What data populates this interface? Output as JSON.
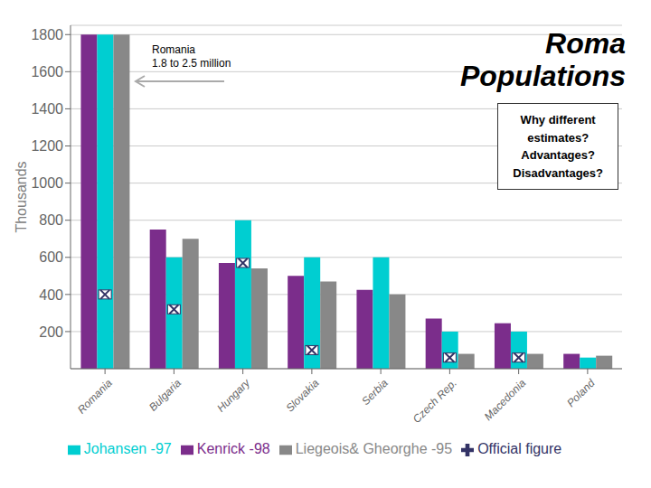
{
  "chart_data": {
    "type": "bar",
    "title": "Roma\nPopulations",
    "subtitle": "Why different\nestimates?\nAdvantages?\nDisadvantages?",
    "ylabel": "Thousands",
    "annotations": [
      {
        "text": "Romania\n1.8 to 2.5 million"
      }
    ],
    "categories": [
      "Romania",
      "Bulgaria",
      "Hungary",
      "Slovakia",
      "Serbia",
      "Czech Rep.",
      "Macedonia",
      "Poland"
    ],
    "series": [
      {
        "name": "Kenrick -98",
        "color": "#7B2D8B",
        "values": [
          1800,
          750,
          570,
          500,
          425,
          270,
          245,
          80
        ]
      },
      {
        "name": "Johansen -97",
        "color": "#00CED1",
        "values": [
          1800,
          600,
          800,
          600,
          600,
          200,
          200,
          60
        ]
      },
      {
        "name": "Liegeois& Gheorghe -95",
        "color": "#888888",
        "values": [
          1800,
          700,
          540,
          470,
          400,
          80,
          80,
          70
        ]
      },
      {
        "name": "Official figure",
        "type": "scatter",
        "marker": "x",
        "color": "#333366",
        "values": [
          400,
          320,
          570,
          100,
          null,
          60,
          60,
          null
        ]
      }
    ],
    "ylim": [
      0,
      1850
    ],
    "yticks": [
      200,
      400,
      600,
      800,
      1000,
      1200,
      1400,
      1600,
      1800
    ],
    "grid": true,
    "legend": "bottom"
  }
}
